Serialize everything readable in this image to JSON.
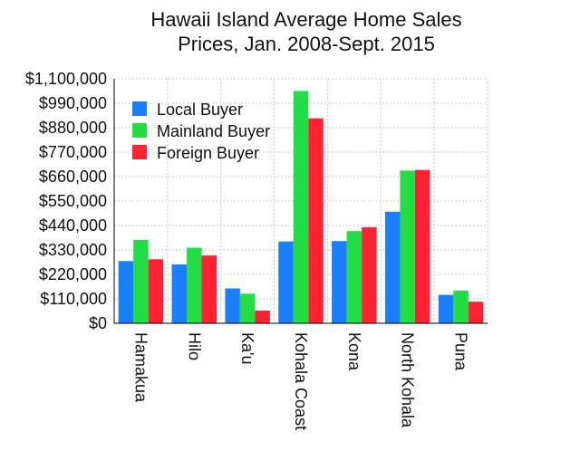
{
  "chart_data": {
    "type": "bar",
    "title_lines": [
      "Hawaii Island Average Home Sales",
      "Prices, Jan. 2008-Sept. 2015"
    ],
    "xlabel": "",
    "ylabel": "",
    "categories": [
      "Hamakua",
      "Hilo",
      "Ka'u",
      "Kohala Coast",
      "Kona",
      "North Kohala",
      "Puna"
    ],
    "series": [
      {
        "name": "Local Buyer",
        "color": "#1a7fff",
        "values": [
          280000,
          265000,
          157000,
          368000,
          370000,
          502000,
          128000
        ]
      },
      {
        "name": "Mainland Buyer",
        "color": "#22dd44",
        "values": [
          375000,
          340000,
          133000,
          1045000,
          415000,
          687000,
          147000
        ]
      },
      {
        "name": "Foreign Buyer",
        "color": "#ff2233",
        "values": [
          288000,
          305000,
          57000,
          922000,
          432000,
          690000,
          97000
        ]
      }
    ],
    "ylim": [
      0,
      1100000
    ],
    "yticks": [
      "$0",
      "$110,000",
      "$220,000",
      "$330,000",
      "$440,000",
      "$550,000",
      "$660,000",
      "$770,000",
      "$880,000",
      "$990,000",
      "$1,100,000"
    ],
    "legend_position": "top-left",
    "grid": true
  }
}
